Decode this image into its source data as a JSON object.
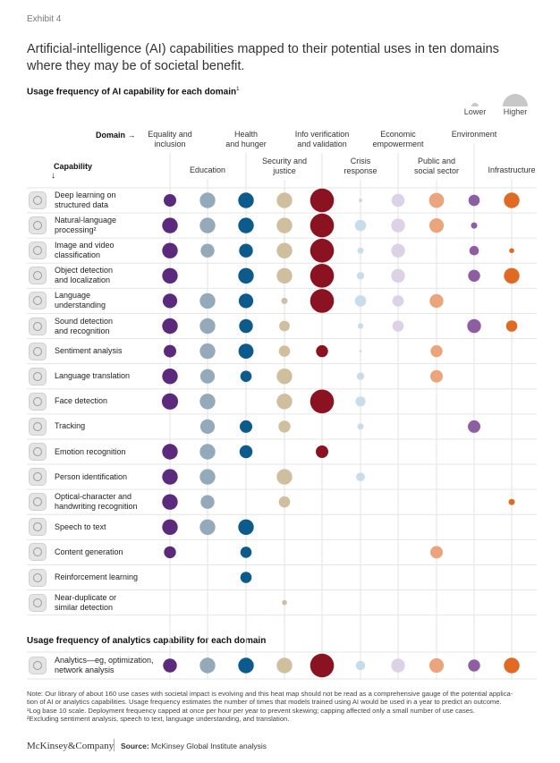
{
  "exhibit": "Exhibit 4",
  "title": "Artificial-intelligence (AI) capabilities mapped to their potential uses in ten domains where they may be of societal benefit.",
  "section_ai": "Usage frequency of AI capability for each domain",
  "section_ai_sup": "1",
  "legend": {
    "lower": "Lower",
    "higher": "Higher"
  },
  "domain_key": "Domain",
  "capability_key": "Capability",
  "section_analytics": "Usage frequency of analytics capability for each domain",
  "note_lines": [
    "Note: Our library of about 160 use cases with societal impact is evolving and this heat map should not be read as a comprehensive gauge of the potential applica-",
    "tion of AI or analytics capabilities. Usage frequency estimates the number of times that models trained using AI would be used in a year to predict an outcome.",
    "¹Log base 10 scale. Deployment frequency capped at once per hour per year to prevent skewing; capping affected only a small number of use cases.",
    "²Excluding sentiment analysis, speech to text, language understanding, and translation."
  ],
  "footer": {
    "brand": "McKinsey&Company",
    "source_label": "Source:",
    "source_text": "McKinsey Global Institute analysis"
  },
  "chart_data": {
    "type": "bubble-heatmap",
    "value_scale": "relative usage frequency, 0 (none) to 1 (highest); log base 10",
    "domains": [
      {
        "name": "Equality and inclusion",
        "lines": [
          "Equality and",
          "inclusion"
        ],
        "color": "#5b2a7d"
      },
      {
        "name": "Education",
        "lines": [
          "Education"
        ],
        "color": "#94aabb"
      },
      {
        "name": "Health and hunger",
        "lines": [
          "Health",
          "and hunger"
        ],
        "color": "#0d5a8c"
      },
      {
        "name": "Security and justice",
        "lines": [
          "Security and",
          "justice"
        ],
        "color": "#cfbf9f"
      },
      {
        "name": "Info verification and validation",
        "lines": [
          "Info verification",
          "and validation"
        ],
        "color": "#8b1321"
      },
      {
        "name": "Crisis response",
        "lines": [
          "Crisis",
          "response"
        ],
        "color": "#c8dde9"
      },
      {
        "name": "Economic empowerment",
        "lines": [
          "Economic",
          "empowerment"
        ],
        "color": "#ddd1e6"
      },
      {
        "name": "Public and social sector",
        "lines": [
          "Public and",
          "social sector"
        ],
        "color": "#eba57c"
      },
      {
        "name": "Environment",
        "lines": [
          "Environment"
        ],
        "color": "#8e5ea2"
      },
      {
        "name": "Infrastructure",
        "lines": [
          "Infrastructure"
        ],
        "color": "#e06a24"
      }
    ],
    "capabilities": [
      {
        "name": "Deep learning on structured data",
        "lines": [
          "Deep learning on",
          "structured data"
        ],
        "values": [
          0.5,
          0.62,
          0.62,
          0.62,
          0.95,
          0.15,
          0.52,
          0.6,
          0.45,
          0.62
        ]
      },
      {
        "name": "Natural-language processing",
        "lines": [
          "Natural-language",
          "processing²"
        ],
        "values": [
          0.62,
          0.62,
          0.62,
          0.62,
          0.95,
          0.45,
          0.55,
          0.58,
          0.25,
          0
        ]
      },
      {
        "name": "Image and video classification",
        "lines": [
          "Image and video",
          "classification"
        ],
        "values": [
          0.62,
          0.55,
          0.55,
          0.62,
          0.95,
          0.25,
          0.55,
          0,
          0.38,
          0.2
        ]
      },
      {
        "name": "Object detection and localization",
        "lines": [
          "Object detection",
          "and localization"
        ],
        "values": [
          0.62,
          0,
          0.62,
          0.62,
          0.95,
          0.3,
          0.55,
          0,
          0.48,
          0.62
        ]
      },
      {
        "name": "Language understanding",
        "lines": [
          "Language",
          "understanding"
        ],
        "values": [
          0.58,
          0.62,
          0.58,
          0.25,
          0.95,
          0.45,
          0.45,
          0.55,
          0,
          0
        ]
      },
      {
        "name": "Sound detection and recognition",
        "lines": [
          "Sound detection",
          "and recognition"
        ],
        "values": [
          0.62,
          0.62,
          0.55,
          0.42,
          0,
          0.22,
          0.45,
          0,
          0.55,
          0.45
        ]
      },
      {
        "name": "Sentiment analysis",
        "lines": [
          "Sentiment analysis"
        ],
        "values": [
          0.5,
          0.62,
          0.6,
          0.45,
          0.48,
          0.1,
          0,
          0.48,
          0,
          0
        ]
      },
      {
        "name": "Language translation",
        "lines": [
          "Language translation"
        ],
        "values": [
          0.62,
          0.58,
          0.45,
          0.62,
          0,
          0.3,
          0,
          0.5,
          0,
          0
        ]
      },
      {
        "name": "Face detection",
        "lines": [
          "Face detection"
        ],
        "values": [
          0.65,
          0.62,
          0,
          0.62,
          0.95,
          0.4,
          0,
          0,
          0,
          0
        ]
      },
      {
        "name": "Tracking",
        "lines": [
          "Tracking"
        ],
        "values": [
          0,
          0.58,
          0.5,
          0.48,
          0,
          0.25,
          0,
          0,
          0.5,
          0
        ]
      },
      {
        "name": "Emotion recognition",
        "lines": [
          "Emotion recognition"
        ],
        "values": [
          0.62,
          0.62,
          0.52,
          0,
          0.5,
          0,
          0,
          0,
          0,
          0
        ]
      },
      {
        "name": "Person identification",
        "lines": [
          "Person identification"
        ],
        "values": [
          0.62,
          0.62,
          0,
          0.62,
          0,
          0.35,
          0,
          0,
          0,
          0
        ]
      },
      {
        "name": "Optical-character and handwriting recognition",
        "lines": [
          "Optical-character and",
          "handwriting recognition"
        ],
        "values": [
          0.62,
          0.55,
          0,
          0.45,
          0,
          0,
          0,
          0,
          0,
          0.25
        ]
      },
      {
        "name": "Speech to text",
        "lines": [
          "Speech to text"
        ],
        "values": [
          0.62,
          0.62,
          0.62,
          0,
          0,
          0,
          0,
          0,
          0,
          0
        ]
      },
      {
        "name": "Content generation",
        "lines": [
          "Content generation"
        ],
        "values": [
          0.48,
          0,
          0.45,
          0,
          0,
          0,
          0,
          0.5,
          0,
          0
        ]
      },
      {
        "name": "Reinforcement learning",
        "lines": [
          "Reinforcement learning"
        ],
        "values": [
          0,
          0,
          0.45,
          0,
          0,
          0,
          0,
          0,
          0,
          0
        ]
      },
      {
        "name": "Near-duplicate or similar detection",
        "lines": [
          "Near-duplicate or",
          "similar detection"
        ],
        "values": [
          0,
          0,
          0,
          0.2,
          0,
          0,
          0,
          0,
          0,
          0
        ]
      }
    ],
    "analytics": {
      "name": "Analytics—eg, optimization, network analysis",
      "lines": [
        "Analytics—eg, optimization,",
        "network analysis"
      ],
      "values": [
        0.55,
        0.62,
        0.62,
        0.62,
        0.95,
        0.38,
        0.55,
        0.58,
        0.48,
        0.62
      ]
    }
  }
}
